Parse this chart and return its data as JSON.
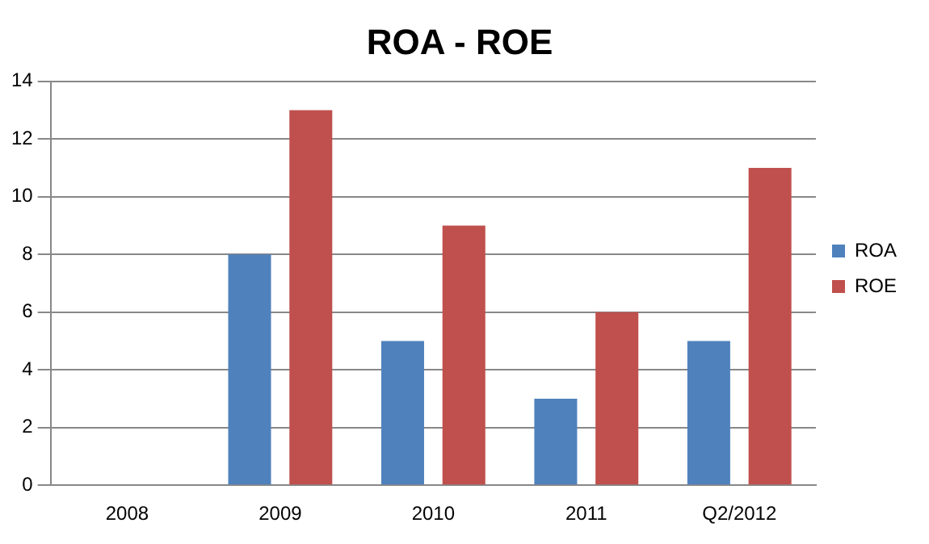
{
  "chart_data": {
    "type": "bar",
    "title": "ROA - ROE",
    "categories": [
      "2008",
      "2009",
      "2010",
      "2011",
      "Q2/2012"
    ],
    "series": [
      {
        "name": "ROA",
        "color": "#4f81bd",
        "values": [
          0,
          8,
          5,
          3,
          5
        ]
      },
      {
        "name": "ROE",
        "color": "#c0504d",
        "values": [
          0,
          13,
          9,
          6,
          11
        ]
      }
    ],
    "ylim": [
      0,
      14
    ],
    "yticks": [
      0,
      2,
      4,
      6,
      8,
      10,
      12,
      14
    ],
    "grid": "y",
    "legend": "right"
  }
}
